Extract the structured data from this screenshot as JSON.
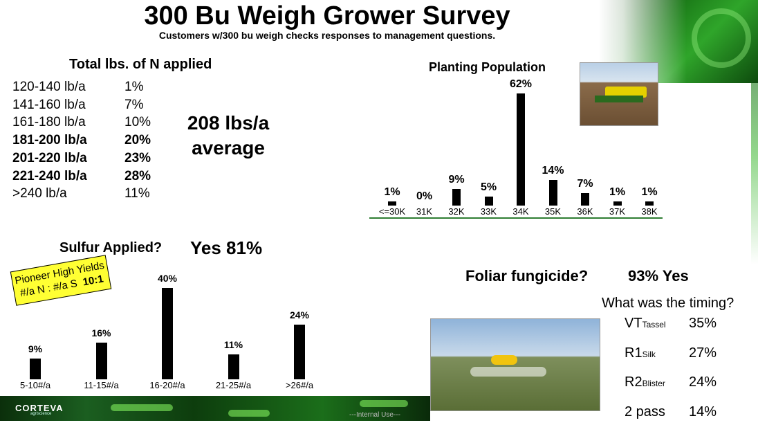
{
  "title": "300 Bu Weigh Grower Survey",
  "subtitle": "Customers w/300 bu weigh checks responses to management questions.",
  "nitrogen": {
    "heading": "Total lbs. of N applied",
    "rows": [
      {
        "range": "120-140 lb/a",
        "pct": "1%",
        "bold": false
      },
      {
        "range": "141-160 lb/a",
        "pct": "7%",
        "bold": false
      },
      {
        "range": "161-180 lb/a",
        "pct": "10%",
        "bold": false
      },
      {
        "range": "181-200 lb/a",
        "pct": "20%",
        "bold": true
      },
      {
        "range": "201-220 lb/a",
        "pct": "23%",
        "bold": true
      },
      {
        "range": "221-240 lb/a",
        "pct": "28%",
        "bold": true
      },
      {
        "range": ">240 lb/a",
        "pct": "11%",
        "bold": false
      }
    ],
    "average_line1": "208 lbs/a",
    "average_line2": "average"
  },
  "planting": {
    "heading": "Planting Population"
  },
  "sulfur": {
    "heading": "Sulfur Applied?",
    "yes": "Yes 81%",
    "callout_line1": "Pioneer High Yields",
    "callout_line2": "#/a N : #/a S",
    "callout_ratio": "10:1"
  },
  "foliar": {
    "heading": "Foliar fungicide?",
    "yes": "93% Yes",
    "timing_heading": "What was the timing?",
    "timings": [
      {
        "stage": "VT",
        "sub": "Tassel",
        "pct": "35%"
      },
      {
        "stage": "R1",
        "sub": "Silk",
        "pct": "27%"
      },
      {
        "stage": "R2",
        "sub": "Blister",
        "pct": "24%"
      },
      {
        "stage": "2 pass",
        "sub": "",
        "pct": "14%"
      }
    ]
  },
  "footer": {
    "logo": "CORTEVA",
    "logo_sub": "agriscience",
    "internal": "---Internal Use---"
  },
  "colors": {
    "bar": "#000000",
    "callout": "#ffff33",
    "axis": "#2e7d32"
  },
  "chart_data": [
    {
      "type": "bar",
      "title": "Planting Population",
      "categories": [
        "<=30K",
        "31K",
        "32K",
        "33K",
        "34K",
        "35K",
        "36K",
        "37K",
        "38K"
      ],
      "values": [
        1,
        0,
        9,
        5,
        62,
        14,
        7,
        1,
        1
      ],
      "value_labels": [
        "1%",
        "0%",
        "9%",
        "5%",
        "62%",
        "14%",
        "7%",
        "1%",
        "1%"
      ],
      "ylim": [
        0,
        62
      ]
    },
    {
      "type": "bar",
      "title": "Sulfur Applied?",
      "categories": [
        "5-10#/a",
        "11-15#/a",
        "16-20#/a",
        "21-25#/a",
        ">26#/a"
      ],
      "values": [
        9,
        16,
        40,
        11,
        24
      ],
      "value_labels": [
        "9%",
        "16%",
        "40%",
        "11%",
        "24%"
      ],
      "ylim": [
        0,
        40
      ]
    }
  ]
}
